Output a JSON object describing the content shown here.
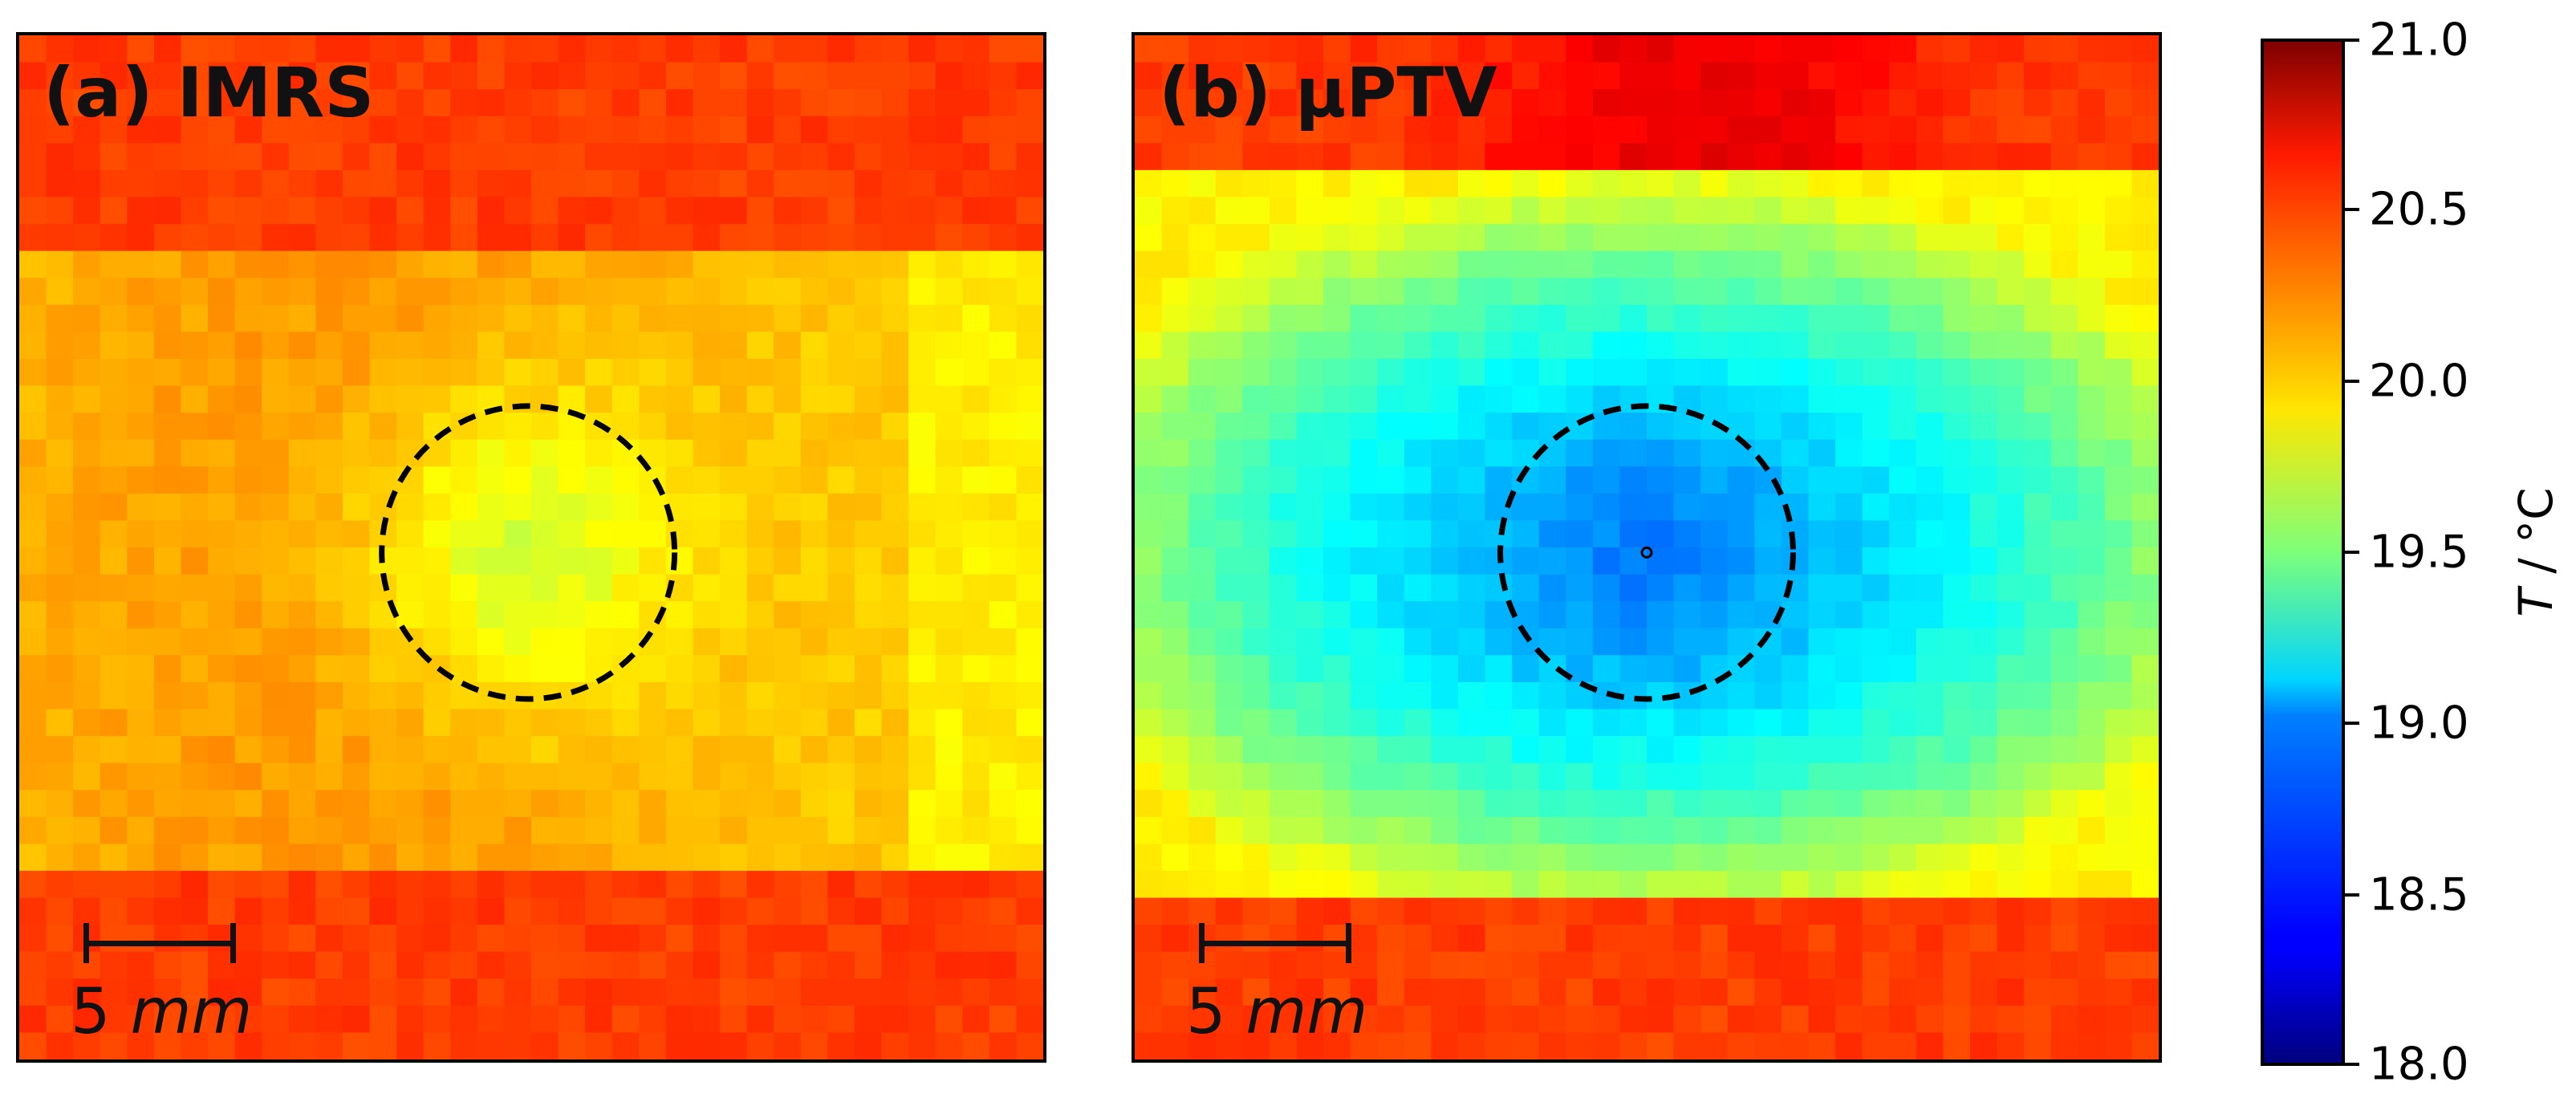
{
  "chart_data": [
    {
      "type": "heatmap",
      "title": "(a) IMRS",
      "panel": "a",
      "description_values": {
        "outer_band_temperature": 20.45,
        "channel_temperature": 20.1,
        "circle_center_temperature": 19.75
      },
      "circle": {
        "style": "dashed",
        "color": "#000000"
      },
      "scale_bar": {
        "value": "5",
        "unit": "mm"
      }
    },
    {
      "type": "heatmap",
      "title": "(b) µPTV",
      "panel": "b",
      "description_values": {
        "outer_band_temperature": 20.45,
        "top_hot_spot_temperature": 20.7,
        "channel_edge_temperature": 20.0,
        "circle_center_temperature": 18.9
      },
      "circle": {
        "style": "dashed",
        "color": "#000000"
      },
      "scale_bar": {
        "value": "5",
        "unit": "mm"
      }
    }
  ],
  "colorbar": {
    "min": 18.0,
    "max": 21.0,
    "colormap": "jet",
    "ticks": [
      "18.0",
      "18.5",
      "19.0",
      "19.5",
      "20.0",
      "20.5",
      "21.0"
    ],
    "label_var": "T",
    "label_unit": " / °C"
  }
}
